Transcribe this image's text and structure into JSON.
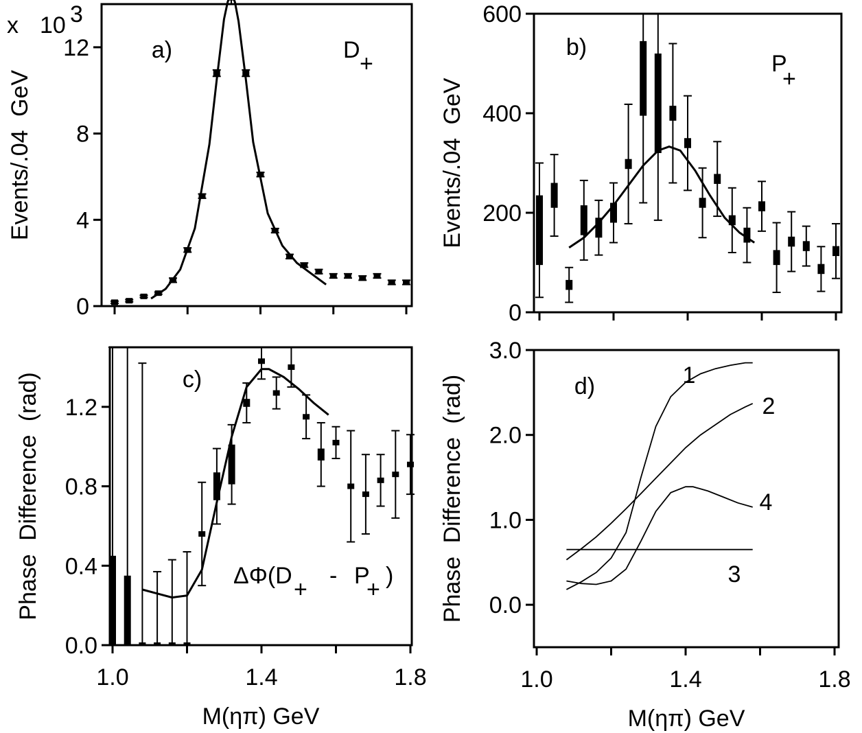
{
  "chart_data": [
    {
      "panel": "a)",
      "type": "scatter",
      "annotation": "D+",
      "ylabel": "Events/.04 GeV",
      "y_multiplier": "x 10^3",
      "xlim": [
        1.0,
        1.8
      ],
      "ylim": [
        0,
        14
      ],
      "xticks": [
        1.0,
        1.2,
        1.4,
        1.6,
        1.8
      ],
      "yticks": [
        0,
        4,
        8,
        12
      ],
      "ytick_labels": [
        "0",
        "4",
        "8",
        "12"
      ],
      "points": {
        "x": [
          1.0,
          1.04,
          1.08,
          1.12,
          1.16,
          1.2,
          1.24,
          1.28,
          1.32,
          1.36,
          1.4,
          1.44,
          1.48,
          1.52,
          1.56,
          1.6,
          1.64,
          1.68,
          1.72,
          1.76,
          1.8
        ],
        "y": [
          0.18,
          0.25,
          0.45,
          0.6,
          1.2,
          2.6,
          5.1,
          10.8,
          14.4,
          10.8,
          6.1,
          3.5,
          2.3,
          1.9,
          1.6,
          1.4,
          1.4,
          1.3,
          1.4,
          1.1,
          1.1
        ],
        "err": [
          0.05,
          0.05,
          0.05,
          0.05,
          0.1,
          0.1,
          0.1,
          0.15,
          0.2,
          0.15,
          0.1,
          0.1,
          0.1,
          0.1,
          0.1,
          0.1,
          0.1,
          0.1,
          0.1,
          0.1,
          0.1
        ]
      },
      "fit_curve": {
        "x": [
          1.1,
          1.14,
          1.18,
          1.22,
          1.26,
          1.28,
          1.3,
          1.31,
          1.32,
          1.33,
          1.34,
          1.36,
          1.38,
          1.42,
          1.46,
          1.5,
          1.54,
          1.58
        ],
        "y": [
          0.35,
          0.8,
          1.7,
          3.6,
          7.5,
          10.5,
          13.3,
          14.1,
          14.5,
          14.1,
          13.2,
          10.5,
          7.6,
          4.3,
          2.8,
          2.0,
          1.5,
          1.0
        ]
      }
    },
    {
      "panel": "b)",
      "type": "scatter",
      "annotation": "P+",
      "ylabel": "Events/.04 GeV",
      "xlim": [
        1.0,
        1.8
      ],
      "ylim": [
        0,
        600
      ],
      "xticks": [
        1.0,
        1.2,
        1.4,
        1.6,
        1.8
      ],
      "yticks": [
        0,
        200,
        400,
        600
      ],
      "ytick_labels": [
        "0",
        "200",
        "400",
        "600"
      ],
      "points": {
        "x": [
          1.0,
          1.04,
          1.08,
          1.12,
          1.16,
          1.2,
          1.24,
          1.28,
          1.32,
          1.36,
          1.4,
          1.44,
          1.48,
          1.52,
          1.56,
          1.6,
          1.64,
          1.68,
          1.72,
          1.76,
          1.8
        ],
        "y": [
          165,
          235,
          55,
          185,
          170,
          200,
          298,
          470,
          420,
          400,
          340,
          220,
          268,
          185,
          155,
          213,
          110,
          142,
          133,
          87,
          123
        ],
        "err": [
          135,
          82,
          35,
          80,
          55,
          60,
          120,
          250,
          235,
          140,
          95,
          70,
          75,
          65,
          55,
          50,
          70,
          60,
          40,
          45,
          55
        ],
        "box_half": [
          70,
          25,
          10,
          30,
          20,
          20,
          10,
          75,
          100,
          15,
          10,
          10,
          10,
          10,
          15,
          10,
          15,
          10,
          10,
          10,
          10
        ]
      },
      "fit_curve": {
        "x": [
          1.08,
          1.12,
          1.16,
          1.2,
          1.24,
          1.28,
          1.32,
          1.35,
          1.38,
          1.42,
          1.46,
          1.5,
          1.54,
          1.58
        ],
        "y": [
          130,
          150,
          180,
          215,
          255,
          295,
          325,
          333,
          325,
          285,
          235,
          190,
          160,
          140
        ]
      }
    },
    {
      "panel": "c)",
      "type": "scatter",
      "annotation": "ΔΦ(D+ - P+)",
      "xlabel": "M(ηπ) GeV",
      "ylabel": "Phase Difference (rad)",
      "xlim": [
        1.0,
        1.8
      ],
      "ylim": [
        0,
        1.5
      ],
      "xticks": [
        1.0,
        1.2,
        1.4,
        1.6,
        1.8
      ],
      "xtick_labels": [
        "1.0",
        "",
        "1.4",
        "",
        "1.8"
      ],
      "yticks": [
        0.0,
        0.4,
        0.8,
        1.2
      ],
      "ytick_labels": [
        "0.0",
        "0.4",
        "0.8",
        "1.2"
      ],
      "points": {
        "x": [
          1.0,
          1.04,
          1.08,
          1.12,
          1.16,
          1.2,
          1.24,
          1.28,
          1.32,
          1.36,
          1.4,
          1.44,
          1.48,
          1.52,
          1.56,
          1.6,
          1.64,
          1.68,
          1.72,
          1.76,
          1.8
        ],
        "y": [
          0.0,
          0.0,
          0.0,
          0.0,
          0.0,
          0.0,
          0.56,
          0.8,
          0.91,
          1.22,
          1.43,
          1.27,
          1.4,
          1.15,
          0.96,
          1.02,
          0.8,
          0.76,
          0.83,
          0.86,
          0.91
        ],
        "err": [
          1.5,
          1.5,
          1.42,
          0.37,
          0.43,
          0.47,
          0.26,
          0.19,
          0.2,
          0.1,
          0.09,
          0.08,
          0.1,
          0.11,
          0.16,
          0.08,
          0.28,
          0.2,
          0.13,
          0.22,
          0.15
        ],
        "box_half": [
          0.45,
          0.35,
          0.01,
          0.01,
          0.01,
          0.01,
          0.01,
          0.07,
          0.1,
          0.02,
          0.01,
          0.01,
          0.01,
          0.01,
          0.03,
          0.01,
          0.01,
          0.01,
          0.01,
          0.01,
          0.01
        ]
      },
      "fit_curve": {
        "x": [
          1.08,
          1.12,
          1.16,
          1.2,
          1.24,
          1.28,
          1.32,
          1.36,
          1.4,
          1.42,
          1.46,
          1.5,
          1.54,
          1.58
        ],
        "y": [
          0.28,
          0.26,
          0.24,
          0.25,
          0.38,
          0.72,
          1.05,
          1.3,
          1.39,
          1.39,
          1.35,
          1.29,
          1.22,
          1.16
        ]
      }
    },
    {
      "panel": "d)",
      "type": "line",
      "xlabel": "M(ηπ) GeV",
      "ylabel": "Phase Difference (rad)",
      "xlim": [
        1.0,
        1.8
      ],
      "ylim": [
        -0.5,
        3.0
      ],
      "xticks": [
        1.0,
        1.2,
        1.4,
        1.6,
        1.8
      ],
      "xtick_labels": [
        "1.0",
        "",
        "1.4",
        "",
        "1.8"
      ],
      "yticks": [
        0.0,
        1.0,
        2.0,
        3.0
      ],
      "ytick_labels": [
        "0.0",
        "1.0",
        "2.0",
        "3.0"
      ],
      "series": [
        {
          "name": "1",
          "x": [
            1.08,
            1.12,
            1.16,
            1.2,
            1.24,
            1.28,
            1.32,
            1.36,
            1.4,
            1.44,
            1.48,
            1.52,
            1.56,
            1.58
          ],
          "y": [
            0.18,
            0.27,
            0.38,
            0.55,
            0.85,
            1.5,
            2.1,
            2.45,
            2.62,
            2.72,
            2.78,
            2.82,
            2.85,
            2.85
          ]
        },
        {
          "name": "2",
          "x": [
            1.08,
            1.12,
            1.16,
            1.2,
            1.24,
            1.28,
            1.32,
            1.36,
            1.4,
            1.44,
            1.48,
            1.52,
            1.56,
            1.58
          ],
          "y": [
            0.53,
            0.66,
            0.8,
            0.96,
            1.13,
            1.31,
            1.49,
            1.67,
            1.85,
            2.0,
            2.12,
            2.24,
            2.33,
            2.37
          ]
        },
        {
          "name": "3",
          "x": [
            1.08,
            1.58
          ],
          "y": [
            0.65,
            0.65
          ]
        },
        {
          "name": "4",
          "x": [
            1.08,
            1.12,
            1.16,
            1.2,
            1.24,
            1.28,
            1.32,
            1.36,
            1.4,
            1.42,
            1.46,
            1.5,
            1.54,
            1.58
          ],
          "y": [
            0.28,
            0.25,
            0.24,
            0.28,
            0.42,
            0.75,
            1.1,
            1.32,
            1.39,
            1.39,
            1.34,
            1.27,
            1.2,
            1.15
          ]
        }
      ]
    }
  ]
}
